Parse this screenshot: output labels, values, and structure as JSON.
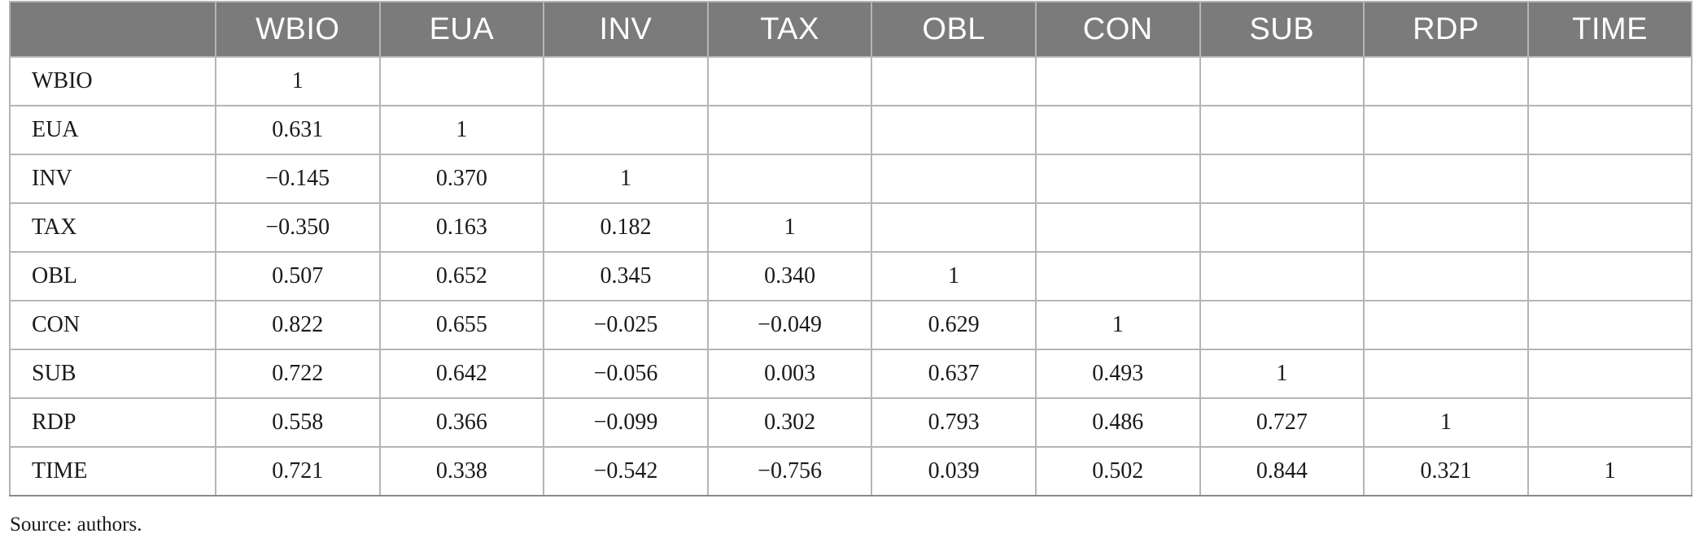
{
  "table": {
    "headers": [
      "",
      "WBIO",
      "EUA",
      "INV",
      "TAX",
      "OBL",
      "CON",
      "SUB",
      "RDP",
      "TIME"
    ],
    "rows": [
      {
        "label": "WBIO",
        "cells": [
          "1",
          "",
          "",
          "",
          "",
          "",
          "",
          "",
          ""
        ]
      },
      {
        "label": "EUA",
        "cells": [
          "0.631",
          "1",
          "",
          "",
          "",
          "",
          "",
          "",
          ""
        ]
      },
      {
        "label": "INV",
        "cells": [
          "−0.145",
          "0.370",
          "1",
          "",
          "",
          "",
          "",
          "",
          ""
        ]
      },
      {
        "label": "TAX",
        "cells": [
          "−0.350",
          "0.163",
          "0.182",
          "1",
          "",
          "",
          "",
          "",
          ""
        ]
      },
      {
        "label": "OBL",
        "cells": [
          "0.507",
          "0.652",
          "0.345",
          "0.340",
          "1",
          "",
          "",
          "",
          ""
        ]
      },
      {
        "label": "CON",
        "cells": [
          "0.822",
          "0.655",
          "−0.025",
          "−0.049",
          "0.629",
          "1",
          "",
          "",
          ""
        ]
      },
      {
        "label": "SUB",
        "cells": [
          "0.722",
          "0.642",
          "−0.056",
          "0.003",
          "0.637",
          "0.493",
          "1",
          "",
          ""
        ]
      },
      {
        "label": "RDP",
        "cells": [
          "0.558",
          "0.366",
          "−0.099",
          "0.302",
          "0.793",
          "0.486",
          "0.727",
          "1",
          ""
        ]
      },
      {
        "label": "TIME",
        "cells": [
          "0.721",
          "0.338",
          "−0.542",
          "−0.756",
          "0.039",
          "0.502",
          "0.844",
          "0.321",
          "1"
        ]
      }
    ]
  },
  "caption": "Source: authors.",
  "colors": {
    "header_bg": "#7b7b7b",
    "header_text": "#ffffff",
    "grid": "#b5b5b5"
  }
}
